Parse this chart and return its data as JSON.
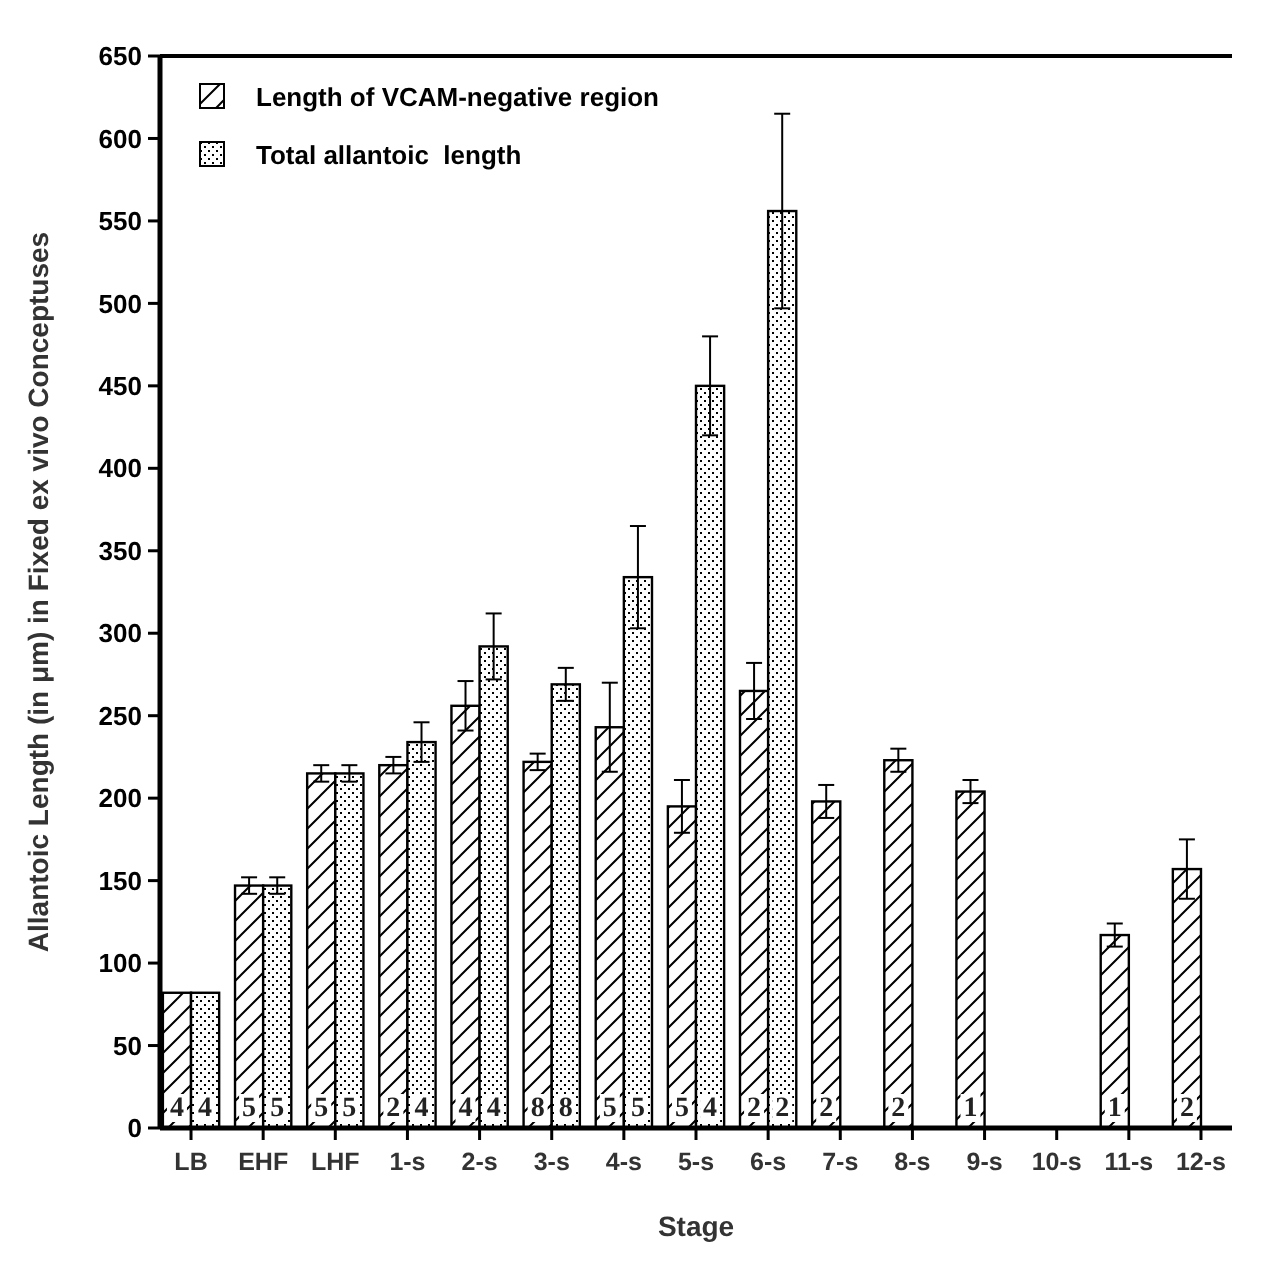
{
  "chart_data": {
    "type": "bar",
    "xlabel": "Stage",
    "ylabel": "Allantoic Length (in μm) in Fixed ex vivo Conceptuses",
    "categories": [
      "LB",
      "EHF",
      "LHF",
      "1-s",
      "2-s",
      "3-s",
      "4-s",
      "5-s",
      "6-s",
      "7-s",
      "8-s",
      "9-s",
      "10-s",
      "11-s",
      "12-s"
    ],
    "series": [
      {
        "name": "Length of VCAM-negative region",
        "color": "#000000",
        "values": [
          82,
          147,
          215,
          220,
          256,
          222,
          243,
          195,
          265,
          198,
          223,
          204,
          null,
          117,
          157
        ],
        "errors": [
          null,
          5,
          5,
          5,
          15,
          5,
          27,
          16,
          17,
          10,
          7,
          7,
          null,
          7,
          18
        ]
      },
      {
        "name": "Total allantoic  length",
        "color": "#000000",
        "values": [
          82,
          147,
          215,
          234,
          292,
          269,
          334,
          450,
          556,
          null,
          null,
          null,
          null,
          null,
          null
        ],
        "errors": [
          null,
          5,
          5,
          12,
          20,
          10,
          31,
          30,
          59,
          null,
          null,
          null,
          null,
          null,
          null
        ]
      }
    ],
    "annotations": [
      {
        "text": "4",
        "x": "LB",
        "y": 0
      },
      {
        "text": "4",
        "x": "LB",
        "y": 0
      },
      {
        "text": "5",
        "x": "EHF",
        "y": 0
      },
      {
        "text": "5",
        "x": "EHF",
        "y": 0
      },
      {
        "text": "5",
        "x": "LHF",
        "y": 0
      },
      {
        "text": "5",
        "x": "LHF",
        "y": 0
      },
      {
        "text": "2",
        "x": "1-s",
        "y": 0
      },
      {
        "text": "4",
        "x": "1-s",
        "y": 0
      },
      {
        "text": "4",
        "x": "2-s",
        "y": 0
      },
      {
        "text": "4",
        "x": "2-s",
        "y": 0
      },
      {
        "text": "8",
        "x": "3-s",
        "y": 0
      },
      {
        "text": "8",
        "x": "3-s",
        "y": 0
      },
      {
        "text": "5",
        "x": "4-s",
        "y": 0
      },
      {
        "text": "5",
        "x": "4-s",
        "y": 0
      },
      {
        "text": "5",
        "x": "5-s",
        "y": 0
      },
      {
        "text": "4",
        "x": "5-s",
        "y": 0
      },
      {
        "text": "2",
        "x": "6-s",
        "y": 0
      },
      {
        "text": "2",
        "x": "6-s",
        "y": 0
      },
      {
        "text": "2",
        "x": "7-s",
        "y": 0
      },
      {
        "text": "2",
        "x": "8-s",
        "y": 0
      },
      {
        "text": "1",
        "x": "9-s",
        "y": 0
      },
      {
        "text": "1",
        "x": "11-s",
        "y": 0
      },
      {
        "text": "2",
        "x": "12-s",
        "y": 0
      }
    ],
    "ylim": [
      0,
      650
    ],
    "yticks": [
      0,
      50,
      100,
      150,
      200,
      250,
      300,
      350,
      400,
      450,
      500,
      550,
      600,
      650
    ],
    "legend": "top left"
  }
}
